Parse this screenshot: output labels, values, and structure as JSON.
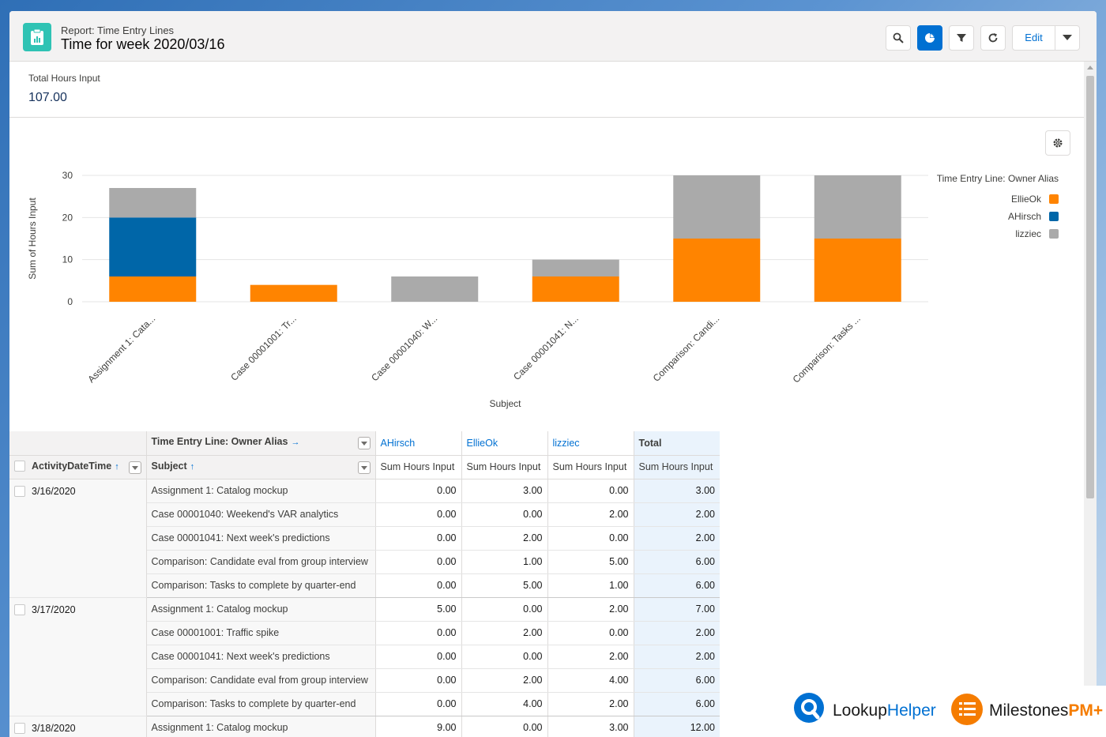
{
  "header": {
    "report_label": "Report: Time Entry Lines",
    "title": "Time for week 2020/03/16",
    "edit_label": "Edit"
  },
  "summary": {
    "label": "Total Hours Input",
    "value": "107.00"
  },
  "chart_data": {
    "type": "bar",
    "stacked": true,
    "categories": [
      "Assignment 1: Cata...",
      "Case 00001001: Tr...",
      "Case 00001040: W...",
      "Case 00001041: N...",
      "Comparison: Candi...",
      "Comparison: Tasks ..."
    ],
    "series": [
      {
        "name": "EllieOk",
        "color": "#ff8400",
        "values": [
          6,
          4,
          0,
          6,
          15,
          15
        ]
      },
      {
        "name": "AHirsch",
        "color": "#0066a8",
        "values": [
          14,
          0,
          0,
          0,
          0,
          0
        ]
      },
      {
        "name": "lizziec",
        "color": "#aaaaaa",
        "values": [
          7,
          0,
          6,
          4,
          15,
          15
        ]
      }
    ],
    "yticks": [
      0,
      10,
      20,
      30
    ],
    "ylim": [
      0,
      30
    ],
    "xlabel": "Subject",
    "ylabel": "Sum of Hours Input",
    "legend_title": "Time Entry Line: Owner Alias",
    "legend_position": "top-right"
  },
  "table": {
    "group_header": "Time Entry Line: Owner Alias",
    "col_activity": "ActivityDateTime",
    "col_subject": "Subject",
    "owners": [
      "AHirsch",
      "EllieOk",
      "lizziec"
    ],
    "total_label": "Total",
    "measure": "Sum Hours Input",
    "groups": [
      {
        "date": "3/16/2020",
        "rows": [
          {
            "subject": "Assignment 1: Catalog mockup",
            "vals": [
              "0.00",
              "3.00",
              "0.00"
            ],
            "total": "3.00"
          },
          {
            "subject": "Case 00001040: Weekend's VAR analytics",
            "vals": [
              "0.00",
              "0.00",
              "2.00"
            ],
            "total": "2.00"
          },
          {
            "subject": "Case 00001041: Next week's predictions",
            "vals": [
              "0.00",
              "2.00",
              "0.00"
            ],
            "total": "2.00"
          },
          {
            "subject": "Comparison: Candidate eval from group interview",
            "vals": [
              "0.00",
              "1.00",
              "5.00"
            ],
            "total": "6.00"
          },
          {
            "subject": "Comparison: Tasks to complete by quarter-end",
            "vals": [
              "0.00",
              "5.00",
              "1.00"
            ],
            "total": "6.00"
          }
        ]
      },
      {
        "date": "3/17/2020",
        "rows": [
          {
            "subject": "Assignment 1: Catalog mockup",
            "vals": [
              "5.00",
              "0.00",
              "2.00"
            ],
            "total": "7.00"
          },
          {
            "subject": "Case 00001001: Traffic spike",
            "vals": [
              "0.00",
              "2.00",
              "0.00"
            ],
            "total": "2.00"
          },
          {
            "subject": "Case 00001041: Next week's predictions",
            "vals": [
              "0.00",
              "0.00",
              "2.00"
            ],
            "total": "2.00"
          },
          {
            "subject": "Comparison: Candidate eval from group interview",
            "vals": [
              "0.00",
              "2.00",
              "4.00"
            ],
            "total": "6.00"
          },
          {
            "subject": "Comparison: Tasks to complete by quarter-end",
            "vals": [
              "0.00",
              "4.00",
              "2.00"
            ],
            "total": "6.00"
          }
        ]
      },
      {
        "date": "3/18/2020",
        "rows": [
          {
            "subject": "Assignment 1: Catalog mockup",
            "vals": [
              "9.00",
              "0.00",
              "3.00"
            ],
            "total": "12.00"
          }
        ]
      }
    ]
  },
  "branding": {
    "logo1_main": "Lookup",
    "logo1_accent": "Helper",
    "logo2_main": "Milestones",
    "logo2_accent": "PM+"
  }
}
